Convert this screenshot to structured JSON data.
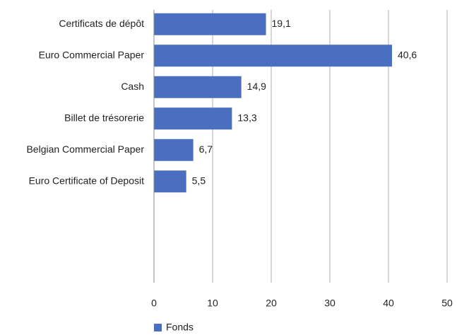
{
  "chart_data": {
    "type": "bar",
    "orientation": "horizontal",
    "categories": [
      "Certificats de dépôt",
      "Euro Commercial Paper",
      "Cash",
      "Billet de trésorerie",
      "Belgian Commercial Paper",
      "Euro Certificate of Deposit"
    ],
    "series": [
      {
        "name": "Fonds",
        "color": "#4a6fc0",
        "values": [
          19.1,
          40.6,
          14.9,
          13.3,
          6.7,
          5.5
        ],
        "value_labels": [
          "19,1",
          "40,6",
          "14,9",
          "13,3",
          "6,7",
          "5,5"
        ]
      }
    ],
    "xlim": [
      0,
      50
    ],
    "xticks": [
      0,
      10,
      20,
      30,
      40,
      50
    ],
    "grid": true,
    "legend": "bottom-left"
  }
}
